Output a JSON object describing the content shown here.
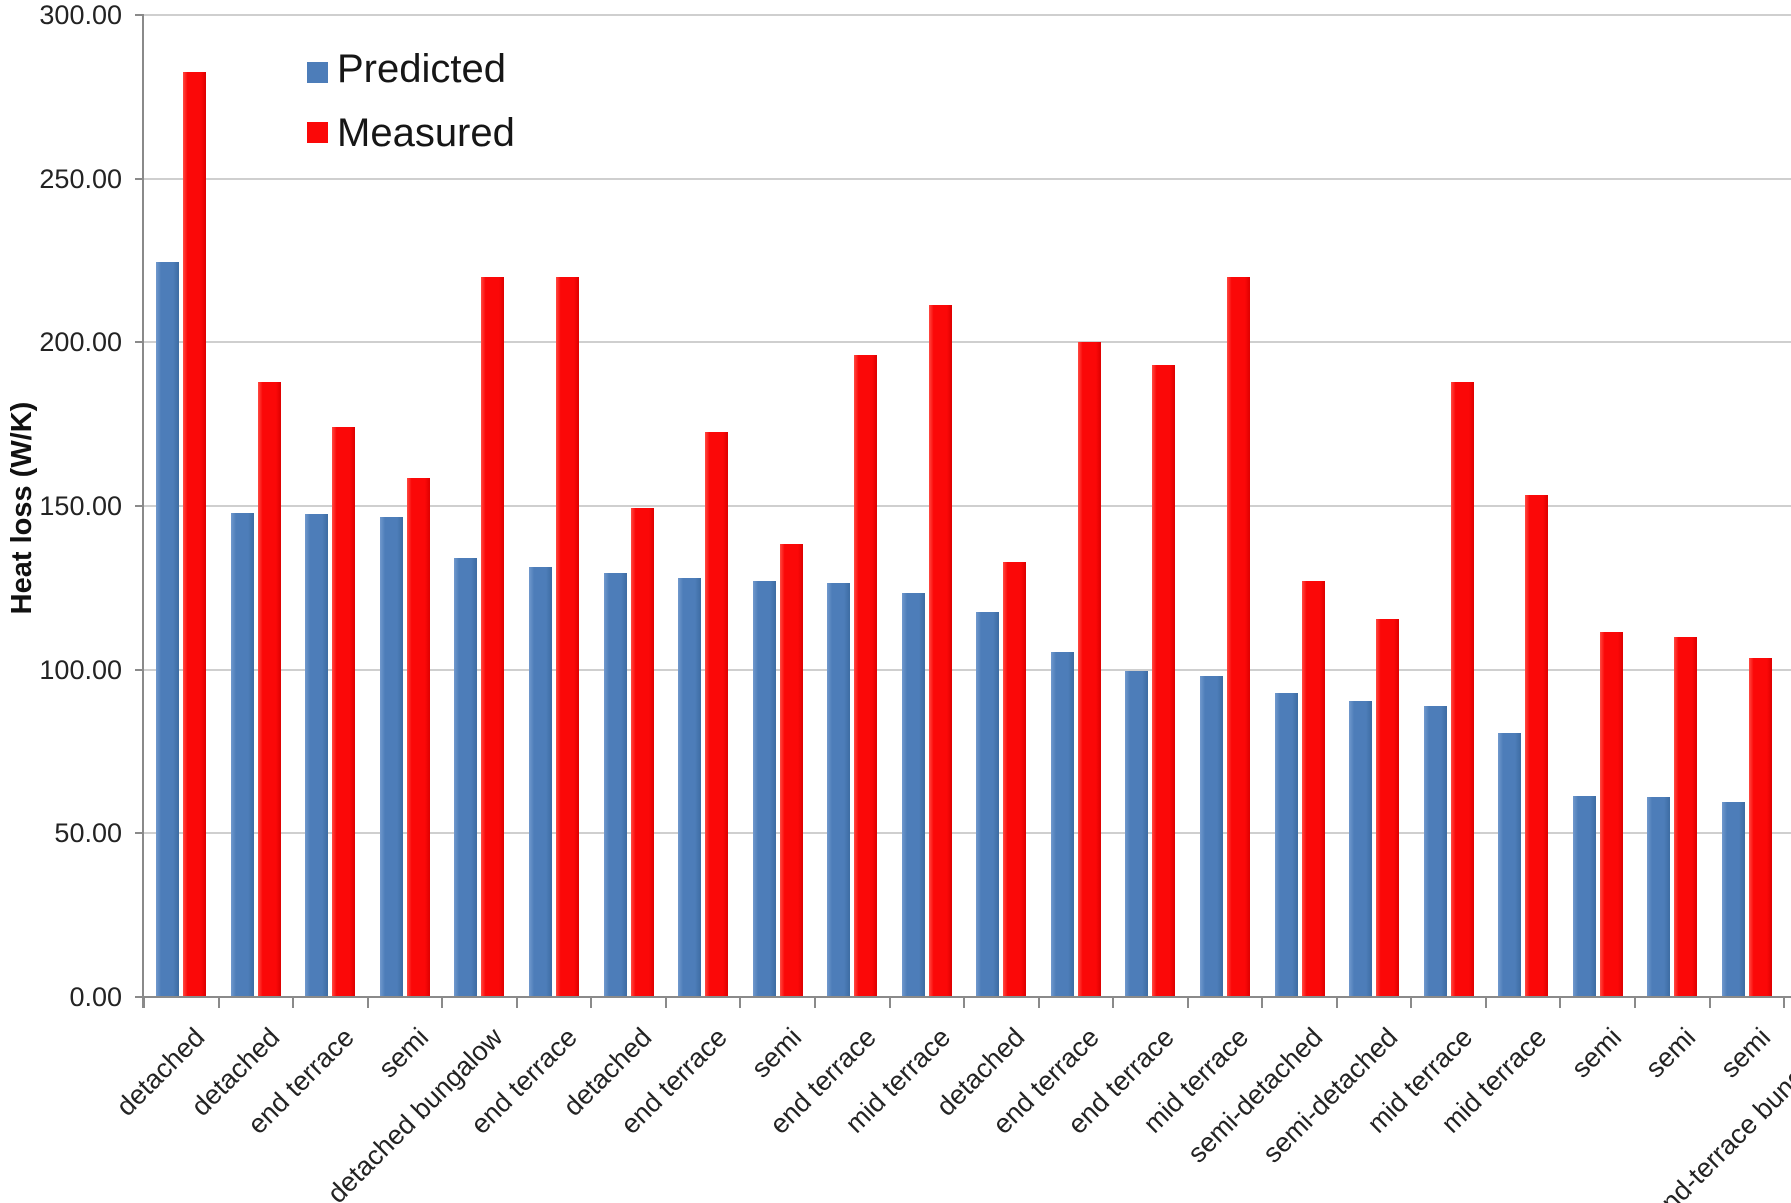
{
  "chart_data": {
    "type": "bar",
    "title": "",
    "ylabel": "Heat loss (W/K)",
    "xlabel": "",
    "ylim": [
      0,
      300
    ],
    "ytick_step": 50,
    "ytick_labels": [
      "0.00",
      "50.00",
      "100.00",
      "150.00",
      "200.00",
      "250.00",
      "300.00"
    ],
    "grid": true,
    "legend": {
      "position": "top-left-inside",
      "items": [
        "Predicted",
        "Measured"
      ]
    },
    "categories": [
      "detached",
      "detached",
      "end terrace",
      "semi",
      "detached bungalow",
      "end terrace",
      "detached",
      "end terrace",
      "semi",
      "end terrace",
      "mid terrace",
      "detached",
      "end terrace",
      "end terrace",
      "mid terrace",
      "semi-detached",
      "semi-detached",
      "mid terrace",
      "mid terrace",
      "semi",
      "semi",
      "semi",
      "end-terrace bungalow"
    ],
    "series": [
      {
        "name": "Predicted",
        "color": "#4D7DB9",
        "values": [
          224.5,
          148,
          147.5,
          146.5,
          134,
          131.5,
          129.5,
          128,
          127,
          126.5,
          123.5,
          117.5,
          105.5,
          99.5,
          98,
          93,
          90.5,
          89,
          80.5,
          61.5,
          61,
          59.5,
          null
        ]
      },
      {
        "name": "Measured",
        "color": "#FB0808",
        "values": [
          282.5,
          188,
          174,
          158.5,
          220,
          220,
          149.5,
          172.5,
          138.5,
          196,
          211.5,
          133,
          200,
          193,
          220,
          127,
          115.5,
          188,
          153.5,
          111.5,
          110,
          103.5,
          null
        ]
      }
    ],
    "axis_color": "#8A8A8A",
    "gridline_color": "#CFCFCF"
  }
}
